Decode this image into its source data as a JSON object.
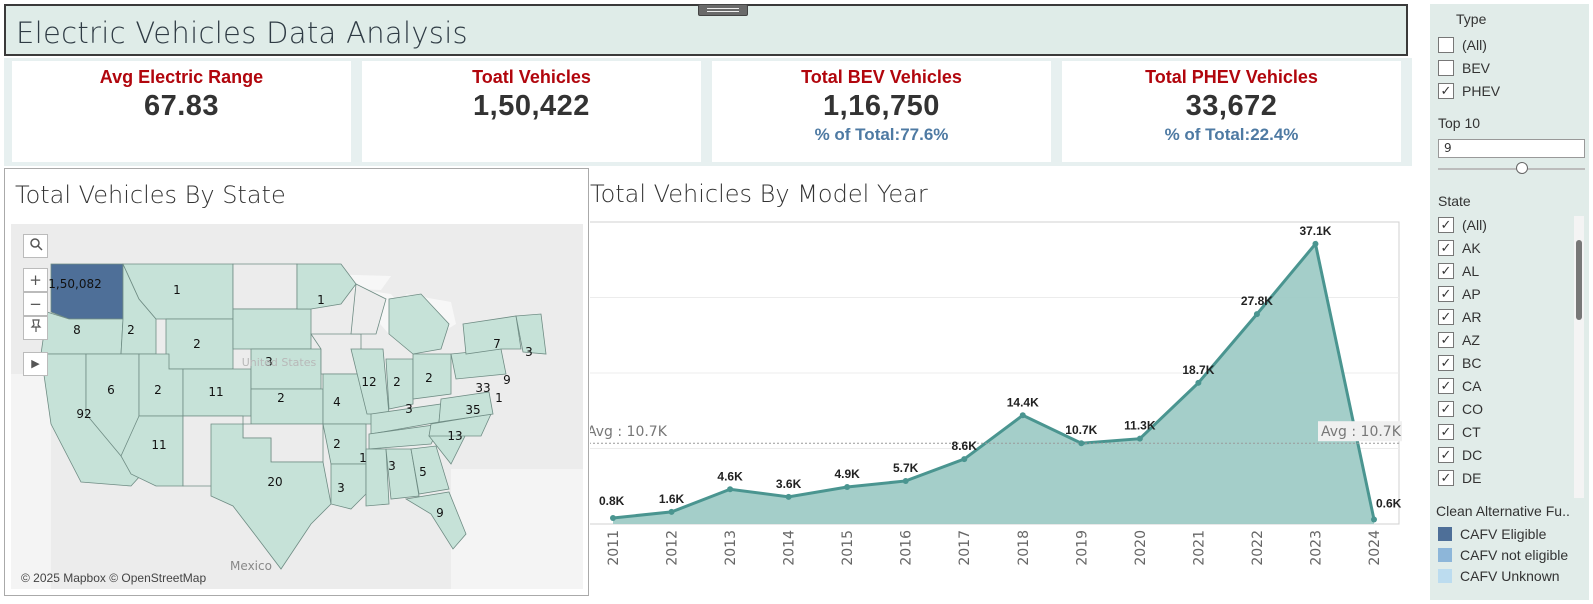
{
  "header": {
    "title": "Electric Vehicles Data Analysis"
  },
  "kpis": [
    {
      "label": "Avg Electric Range",
      "value": "67.83",
      "pct": ""
    },
    {
      "label": "Toatl Vehicles",
      "value": "1,50,422",
      "pct": ""
    },
    {
      "label": "Total BEV Vehicles",
      "value": "1,16,750",
      "pct": "% of  Total:77.6%"
    },
    {
      "label": "Total PHEV Vehicles",
      "value": "33,672",
      "pct": "% of  Total:22.4%"
    }
  ],
  "map": {
    "title": "Total Vehicles By State",
    "attribution": "© 2025 Mapbox © OpenStreetMap",
    "mexico_label": "Mexico",
    "us_label": "United States",
    "state_labels": [
      "1,50,082",
      "1",
      "8",
      "2",
      "1",
      "2",
      "3",
      "6",
      "2",
      "11",
      "92",
      "2",
      "4",
      "11",
      "12",
      "2",
      "2",
      "7",
      "3",
      "33",
      "9",
      "1",
      "3",
      "35",
      "13",
      "2",
      "1",
      "3",
      "5",
      "3",
      "20",
      "9"
    ],
    "colors": {
      "washington": "#4e6f98",
      "state_fill": "#c6e2d8",
      "land": "#ececec",
      "water": "#f7f7f7"
    },
    "controls": {
      "search": "search-icon",
      "zoom_in": "+",
      "zoom_out": "−",
      "pin": "pin-icon",
      "expand": "▶"
    }
  },
  "chart": {
    "title": "Total Vehicles By Model Year",
    "avg_label_left": "Avg : 10.7K",
    "avg_label_right": "Avg : 10.7K"
  },
  "chart_data": {
    "type": "area",
    "title": "Total Vehicles By Model Year",
    "x": [
      "2011",
      "2012",
      "2013",
      "2014",
      "2015",
      "2016",
      "2017",
      "2018",
      "2019",
      "2020",
      "2021",
      "2022",
      "2023",
      "2024"
    ],
    "values": [
      0.8,
      1.6,
      4.6,
      3.6,
      4.9,
      5.7,
      8.6,
      14.4,
      10.7,
      11.3,
      18.7,
      27.8,
      37.1,
      0.6
    ],
    "data_labels": [
      "0.8K",
      "1.6K",
      "4.6K",
      "3.6K",
      "4.9K",
      "5.7K",
      "8.6K",
      "14.4K",
      "10.7K",
      "11.3K",
      "18.7K",
      "27.8K",
      "37.1K",
      "0.6K"
    ],
    "unit": "K",
    "average": 10.7,
    "ylim": [
      0,
      40
    ],
    "grid": true,
    "colors": {
      "fill": "#9fcbc6",
      "line": "#4a9590"
    }
  },
  "sidebar": {
    "toolstrip": [
      "✕",
      "⊥",
      "▾"
    ],
    "type_filter": {
      "title": "Type",
      "items": [
        "(All)",
        "BEV",
        "PHEV"
      ]
    },
    "top10": {
      "title": "Top 10",
      "value": "9"
    },
    "state_filter": {
      "title": "State",
      "items": [
        "(All)",
        "AK",
        "AL",
        "AP",
        "AR",
        "AZ",
        "BC",
        "CA",
        "CO",
        "CT",
        "DC",
        "DE"
      ]
    },
    "legend": {
      "title": "Clean Alternative Fu..",
      "items": [
        {
          "label": "CAFV Eligible",
          "color": "#4e6f98"
        },
        {
          "label": "CAFV not eligible",
          "color": "#8db6d9"
        },
        {
          "label": "CAFV Unknown",
          "color": "#bcdcef"
        }
      ]
    }
  }
}
